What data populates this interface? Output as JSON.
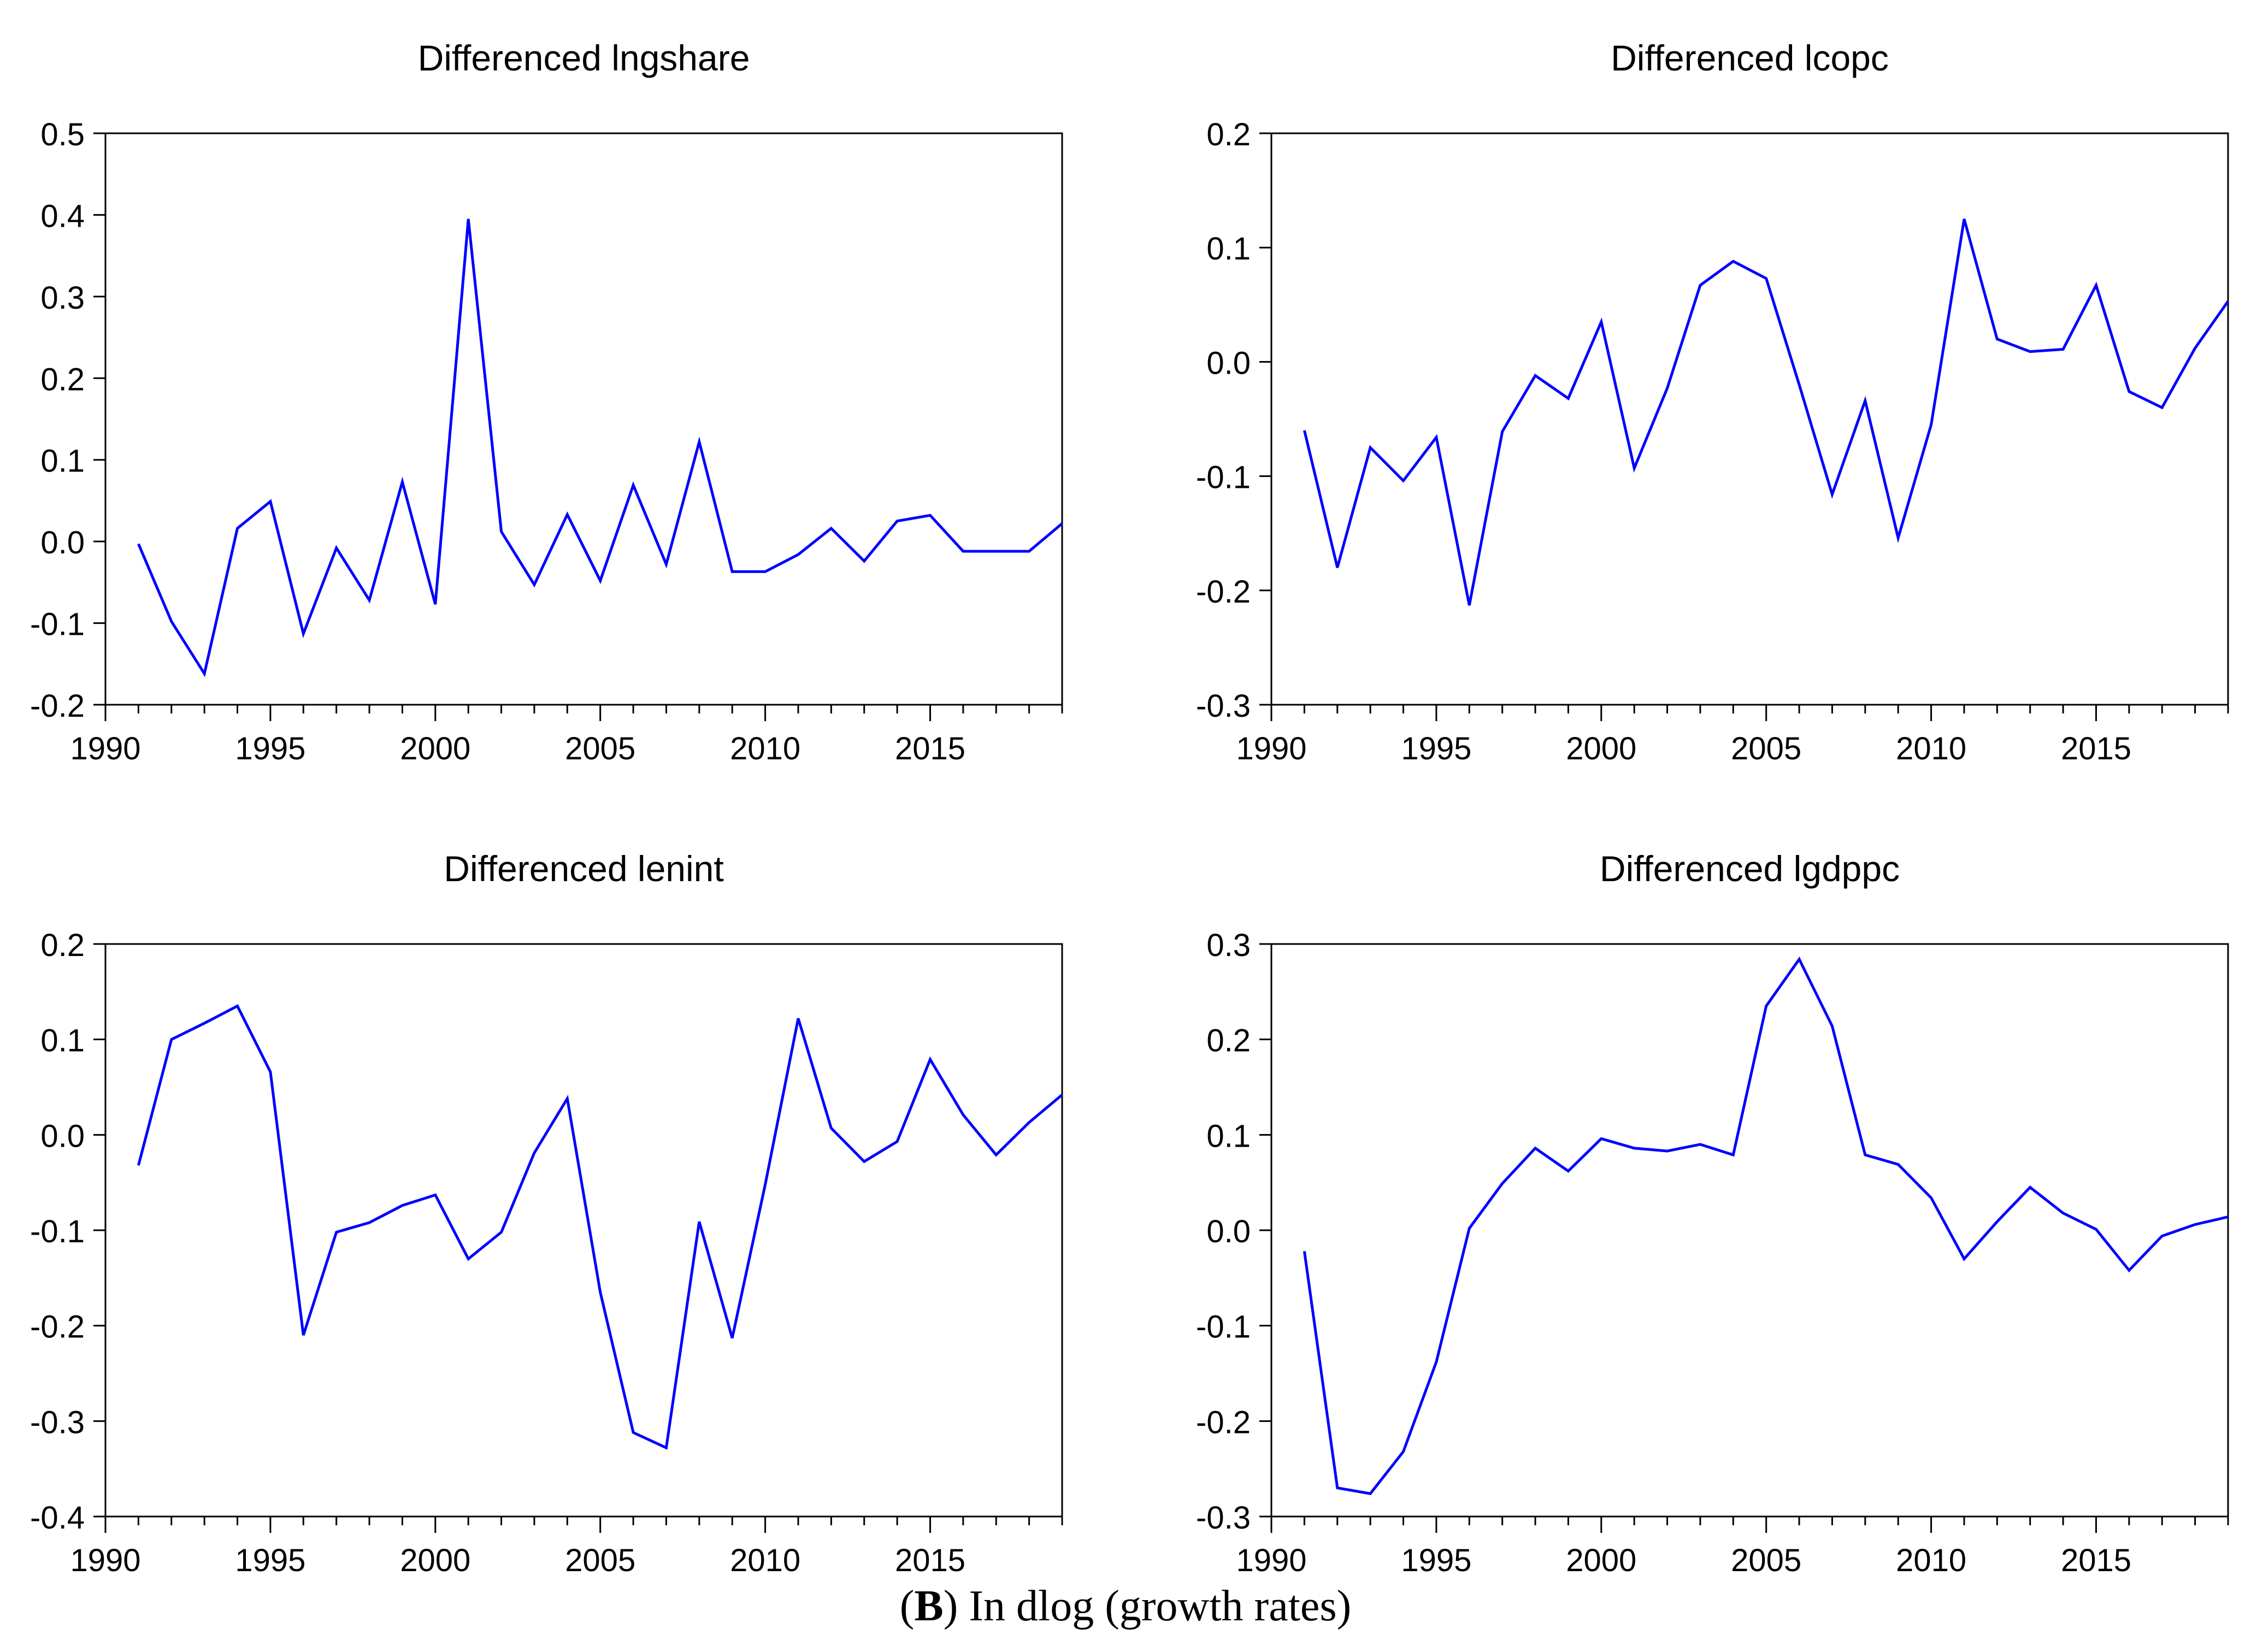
{
  "colors": {
    "line": "#0000ff",
    "axis": "#000000",
    "text": "#000000",
    "background": "#ffffff"
  },
  "caption": {
    "open": "(",
    "label": "B",
    "rest": ") In dlog (growth rates)"
  },
  "chart_data": [
    {
      "type": "line",
      "title": "Differenced lngshare",
      "xlabel": "",
      "ylabel": "",
      "xlim": [
        1990,
        2019
      ],
      "ylim": [
        -0.2,
        0.5
      ],
      "grid": false,
      "x_ticks": [
        1990,
        1995,
        2000,
        2005,
        2010,
        2015
      ],
      "y_ticks": [
        -0.2,
        -0.1,
        0.0,
        0.1,
        0.2,
        0.3,
        0.4,
        0.5
      ],
      "y_tick_labels": [
        "-0.2",
        "-0.1",
        "0.0",
        "0.1",
        "0.2",
        "0.3",
        "0.4",
        "0.5"
      ],
      "series": [
        {
          "name": "Differenced lngshare",
          "x": [
            1991,
            1992,
            1993,
            1994,
            1995,
            1996,
            1997,
            1998,
            1999,
            2000,
            2001,
            2002,
            2003,
            2004,
            2005,
            2006,
            2007,
            2008,
            2009,
            2010,
            2011,
            2012,
            2013,
            2014,
            2015,
            2016,
            2017,
            2018,
            2019
          ],
          "values": [
            -0.003,
            -0.098,
            -0.162,
            0.016,
            0.049,
            -0.113,
            -0.008,
            -0.072,
            0.073,
            -0.077,
            0.395,
            0.012,
            -0.053,
            0.033,
            -0.048,
            0.069,
            -0.028,
            0.122,
            -0.037,
            -0.037,
            -0.016,
            0.016,
            -0.024,
            0.025,
            0.032,
            -0.012,
            -0.012,
            -0.012,
            0.022
          ]
        }
      ]
    },
    {
      "type": "line",
      "title": "Differenced lcopc",
      "xlabel": "",
      "ylabel": "",
      "xlim": [
        1990,
        2019
      ],
      "ylim": [
        -0.3,
        0.2
      ],
      "grid": false,
      "x_ticks": [
        1990,
        1995,
        2000,
        2005,
        2010,
        2015
      ],
      "y_ticks": [
        -0.3,
        -0.2,
        -0.1,
        0.0,
        0.1,
        0.2
      ],
      "y_tick_labels": [
        "-0.3",
        "-0.2",
        "-0.1",
        "0.0",
        "0.1",
        "0.2"
      ],
      "series": [
        {
          "name": "Differenced lcopc",
          "x": [
            1991,
            1992,
            1993,
            1994,
            1995,
            1996,
            1997,
            1998,
            1999,
            2000,
            2001,
            2002,
            2003,
            2004,
            2005,
            2006,
            2007,
            2008,
            2009,
            2010,
            2011,
            2012,
            2013,
            2014,
            2015,
            2016,
            2017,
            2018,
            2019
          ],
          "values": [
            -0.06,
            -0.18,
            -0.075,
            -0.104,
            -0.066,
            -0.213,
            -0.061,
            -0.012,
            -0.032,
            0.035,
            -0.093,
            -0.023,
            0.067,
            0.088,
            0.073,
            -0.02,
            -0.116,
            -0.034,
            -0.154,
            -0.055,
            0.125,
            0.02,
            0.009,
            0.011,
            0.067,
            -0.026,
            -0.04,
            0.012,
            0.053
          ]
        }
      ]
    },
    {
      "type": "line",
      "title": "Differenced lenint",
      "xlabel": "",
      "ylabel": "",
      "xlim": [
        1990,
        2019
      ],
      "ylim": [
        -0.4,
        0.2
      ],
      "grid": false,
      "x_ticks": [
        1990,
        1995,
        2000,
        2005,
        2010,
        2015
      ],
      "y_ticks": [
        -0.4,
        -0.3,
        -0.2,
        -0.1,
        0.0,
        0.1,
        0.2
      ],
      "y_tick_labels": [
        "-0.4",
        "-0.3",
        "-0.2",
        "-0.1",
        "0.0",
        "0.1",
        "0.2"
      ],
      "series": [
        {
          "name": "Differenced lenint",
          "x": [
            1991,
            1992,
            1993,
            1994,
            1995,
            1996,
            1997,
            1998,
            1999,
            2000,
            2001,
            2002,
            2003,
            2004,
            2005,
            2006,
            2007,
            2008,
            2009,
            2010,
            2011,
            2012,
            2013,
            2014,
            2015,
            2016,
            2017,
            2018,
            2019
          ],
          "values": [
            -0.032,
            0.1,
            0.117,
            0.135,
            0.066,
            -0.21,
            -0.102,
            -0.092,
            -0.074,
            -0.063,
            -0.13,
            -0.102,
            -0.019,
            0.038,
            -0.165,
            -0.312,
            -0.328,
            -0.091,
            -0.213,
            -0.052,
            0.122,
            0.007,
            -0.028,
            -0.007,
            0.079,
            0.021,
            -0.021,
            0.013,
            0.042
          ]
        }
      ]
    },
    {
      "type": "line",
      "title": "Differenced lgdppc",
      "xlabel": "",
      "ylabel": "",
      "xlim": [
        1990,
        2019
      ],
      "ylim": [
        -0.3,
        0.3
      ],
      "grid": false,
      "x_ticks": [
        1990,
        1995,
        2000,
        2005,
        2010,
        2015
      ],
      "y_ticks": [
        -0.3,
        -0.2,
        -0.1,
        0.0,
        0.1,
        0.2,
        0.3
      ],
      "y_tick_labels": [
        "-0.3",
        "-0.2",
        "-0.1",
        "0.0",
        "0.1",
        "0.2",
        "0.3"
      ],
      "series": [
        {
          "name": "Differenced lgdppc",
          "x": [
            1991,
            1992,
            1993,
            1994,
            1995,
            1996,
            1997,
            1998,
            1999,
            2000,
            2001,
            2002,
            2003,
            2004,
            2005,
            2006,
            2007,
            2008,
            2009,
            2010,
            2011,
            2012,
            2013,
            2014,
            2015,
            2016,
            2017,
            2018,
            2019
          ],
          "values": [
            -0.022,
            -0.27,
            -0.276,
            -0.232,
            -0.138,
            0.002,
            0.049,
            0.086,
            0.062,
            0.096,
            0.086,
            0.083,
            0.09,
            0.079,
            0.235,
            0.284,
            0.214,
            0.079,
            0.069,
            0.034,
            -0.03,
            0.009,
            0.045,
            0.018,
            0.001,
            -0.042,
            -0.006,
            0.006,
            0.014
          ]
        }
      ]
    }
  ]
}
